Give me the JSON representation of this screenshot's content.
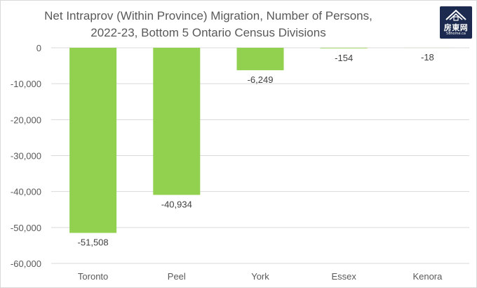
{
  "chart_data": {
    "type": "bar",
    "title": "Net Intraprov (Within Province) Migration, Number of Persons,",
    "subtitle": "2022-23, Bottom 5 Ontario Census Divisions",
    "categories": [
      "Toronto",
      "Peel",
      "York",
      "Essex",
      "Kenora"
    ],
    "values": [
      -51508,
      -40934,
      -6249,
      -154,
      -18
    ],
    "data_labels": [
      "-51,508",
      "-40,934",
      "-6,249",
      "-154",
      "-18"
    ],
    "yticks": [
      0,
      -10000,
      -20000,
      -30000,
      -40000,
      -50000,
      -60000
    ],
    "ytick_labels": [
      "0",
      "-10,000",
      "-20,000",
      "-30,000",
      "-40,000",
      "-50,000",
      "-60,000"
    ],
    "ylim": [
      -60000,
      0
    ],
    "grid": true,
    "bar_color": "#92d050",
    "grid_color": "#d9d9d9"
  },
  "logo": {
    "text": "房東网",
    "subtext": "58home.ca",
    "color": "#1b2a4e"
  }
}
